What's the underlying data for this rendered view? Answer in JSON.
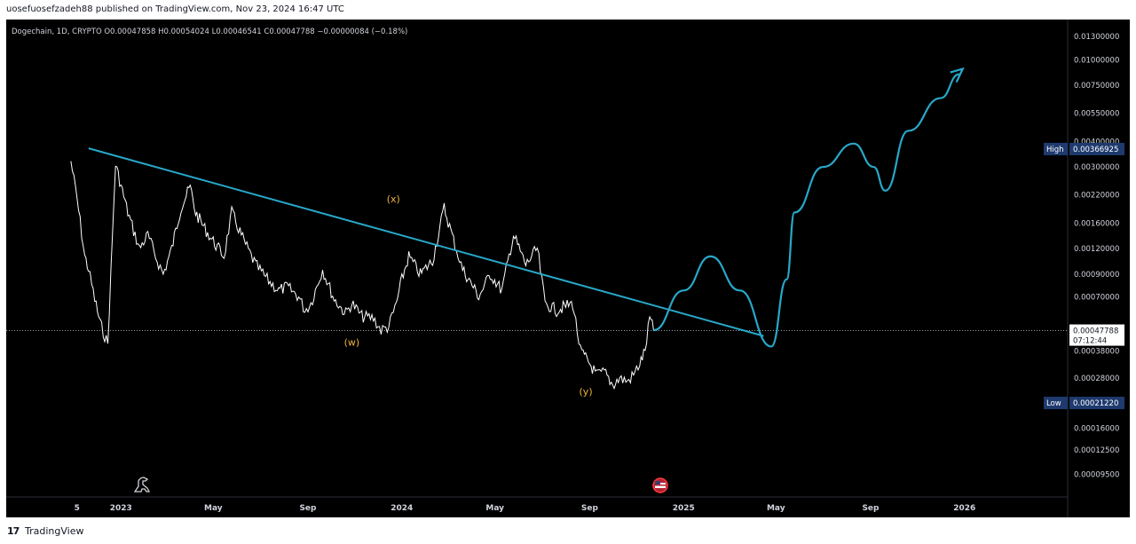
{
  "publish": {
    "text": "uosefuosefzadeh88 published on TradingView.com, Nov 23, 2024 16:47 UTC"
  },
  "footer": {
    "brand": "TradingView",
    "logo": "17"
  },
  "legend": {
    "text": "Dogechain, 1D, CRYPTO  O0.00047858  H0.00054024  L0.00046541  C0.00047788  −0.00000084 (−0.18%)"
  },
  "colors": {
    "background": "#000000",
    "price": "#ffffff",
    "trendline": "#28a8c9",
    "projection": "#28a8c9",
    "wave_label": "#f0b33b",
    "tag_bg": "#1e3a6e"
  },
  "chart_data": {
    "type": "line",
    "scale": "log",
    "symbol": "Dogechain",
    "interval": "1D",
    "exchange": "CRYPTO",
    "ohlc": {
      "open": 0.00047858,
      "high": 0.00054024,
      "low": 0.00046541,
      "close": 0.00047788,
      "change": -8.4e-07,
      "change_pct": -0.18
    },
    "y_ticks": [
      "0.01300000",
      "0.01000000",
      "0.00750000",
      "0.00550000",
      "0.00400000",
      "0.00300000",
      "0.00220000",
      "0.00160000",
      "0.00120000",
      "0.00090000",
      "0.00070000",
      "0.00038000",
      "0.00028000",
      "0.00016000",
      "0.00012500",
      "0.00009500"
    ],
    "y_tick_values": [
      0.013,
      0.01,
      0.0075,
      0.0055,
      0.004,
      0.003,
      0.0022,
      0.0016,
      0.0012,
      0.0009,
      0.0007,
      0.00038,
      0.00028,
      0.00016,
      0.000125,
      9.5e-05
    ],
    "ylim": [
      8e-05,
      0.0145
    ],
    "x_ticks": [
      "5",
      "2023",
      "May",
      "Sep",
      "2024",
      "May",
      "Sep",
      "2025",
      "May",
      "Sep",
      "2026"
    ],
    "x_tick_dates": [
      "2022-11-05",
      "2023-01-01",
      "2023-05-01",
      "2023-09-01",
      "2024-01-01",
      "2024-05-01",
      "2024-09-01",
      "2025-01-01",
      "2025-05-01",
      "2025-09-01",
      "2026-01-01"
    ],
    "xlim": [
      "2022-08-05",
      "2026-05-15"
    ],
    "series": [
      {
        "type": "line",
        "x": [
          "2022-10-28",
          "2022-11-05",
          "2022-11-15",
          "2022-11-20",
          "2022-11-28",
          "2022-12-05",
          "2022-12-15",
          "2022-12-25",
          "2023-01-10",
          "2023-01-25",
          "2023-02-05",
          "2023-02-15",
          "2023-02-25",
          "2023-03-08",
          "2023-03-20",
          "2023-04-01",
          "2023-04-08",
          "2023-04-20",
          "2023-05-01",
          "2023-05-15",
          "2023-05-25",
          "2023-06-10",
          "2023-06-25",
          "2023-07-10",
          "2023-07-25",
          "2023-08-05",
          "2023-08-20",
          "2023-08-28",
          "2023-09-05",
          "2023-09-20",
          "2023-10-05",
          "2023-10-20",
          "2023-10-28",
          "2023-11-10",
          "2023-11-25",
          "2023-12-05",
          "2023-12-15",
          "2023-12-25",
          "2024-01-01",
          "2024-01-10",
          "2024-01-25",
          "2024-02-10",
          "2024-02-25",
          "2024-03-10",
          "2024-03-20",
          "2024-04-01",
          "2024-04-10",
          "2024-04-25",
          "2024-05-10",
          "2024-05-25",
          "2024-06-10",
          "2024-06-25",
          "2024-07-05",
          "2024-07-20",
          "2024-08-01",
          "2024-08-10",
          "2024-08-20",
          "2024-09-01",
          "2024-09-10",
          "2024-09-20",
          "2024-10-01",
          "2024-10-10",
          "2024-10-20",
          "2024-10-28",
          "2024-11-05",
          "2024-11-12",
          "2024-11-18",
          "2024-11-23"
        ],
        "y": [
          0.0032,
          0.0021,
          0.0011,
          0.00095,
          0.00068,
          0.00052,
          0.00041,
          0.0031,
          0.0018,
          0.0012,
          0.0014,
          0.0011,
          0.0009,
          0.0012,
          0.0019,
          0.0024,
          0.0018,
          0.0015,
          0.0013,
          0.0011,
          0.0018,
          0.0013,
          0.001,
          0.00085,
          0.00075,
          0.00078,
          0.0007,
          0.0006,
          0.00065,
          0.00095,
          0.00068,
          0.00058,
          0.00065,
          0.00056,
          0.00055,
          0.00048,
          0.0005,
          0.00065,
          0.00085,
          0.0011,
          0.0009,
          0.00105,
          0.0019,
          0.00125,
          0.00095,
          0.0008,
          0.0007,
          0.0009,
          0.00075,
          0.0014,
          0.001,
          0.0012,
          0.00065,
          0.0006,
          0.00063,
          0.00065,
          0.00038,
          0.00033,
          0.00029,
          0.0003,
          0.00026,
          0.00028,
          0.00027,
          0.00029,
          0.00033,
          0.00038,
          0.00055,
          0.00048
        ]
      },
      {
        "type": "trendline",
        "x": [
          "2022-11-20",
          "2025-04-15"
        ],
        "y": [
          0.0037,
          0.00045
        ]
      },
      {
        "type": "projection",
        "x": [
          "2024-11-23",
          "2025-01-01",
          "2025-02-05",
          "2025-03-15",
          "2025-04-25",
          "2025-05-15",
          "2025-05-25",
          "2025-07-01",
          "2025-08-10",
          "2025-09-05",
          "2025-09-20",
          "2025-10-20",
          "2025-12-01",
          "2025-12-25"
        ],
        "y": [
          0.00048,
          0.00075,
          0.0011,
          0.00075,
          0.0004,
          0.00085,
          0.0018,
          0.003,
          0.0039,
          0.003,
          0.0023,
          0.0045,
          0.0065,
          0.0085
        ]
      }
    ],
    "annotations": [
      {
        "label": "(x)",
        "x": "2023-12-21",
        "y": 0.0021
      },
      {
        "label": "(w)",
        "x": "2023-10-28",
        "y": 0.00042
      },
      {
        "label": "(y)",
        "x": "2024-08-27",
        "y": 0.000242
      }
    ],
    "tags": [
      {
        "label": "High",
        "value": "0.00366925",
        "y": 0.00366925
      },
      {
        "label": "Low",
        "value": "0.00021220",
        "y": 0.0002122
      },
      {
        "label": "",
        "value": "0.00047788",
        "sub": "07:12:44",
        "y": 0.00047788
      }
    ]
  }
}
